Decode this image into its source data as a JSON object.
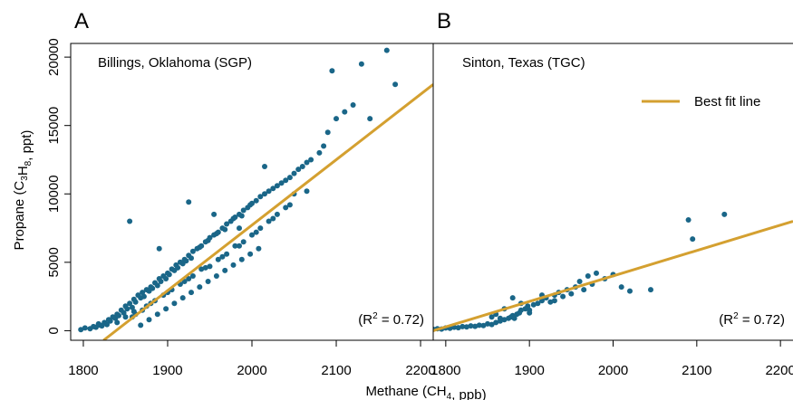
{
  "colors": {
    "points": "#1a6688",
    "fit_line": "#d4a030",
    "axis": "#000000"
  },
  "chart_data": [
    {
      "type": "scatter",
      "panel_letter": "A",
      "title": "Billings, Oklahoma (SGP)",
      "annotation_r2": "0.72",
      "xlabel": "Methane (CH₄, ppb)",
      "ylabel": "Propane (C₃H₈, ppt)",
      "xlim": [
        1785,
        2215
      ],
      "ylim": [
        -700,
        21000
      ],
      "xticks": [
        1800,
        1900,
        2000,
        2100,
        2200
      ],
      "yticks": [
        0,
        5000,
        10000,
        15000,
        20000
      ],
      "series": [
        {
          "x": [
            1797,
            1802,
            1808,
            1812,
            1815,
            1818,
            1820,
            1822,
            1825,
            1828,
            1830,
            1832,
            1835,
            1838,
            1840,
            1842,
            1845,
            1848,
            1850,
            1852,
            1855,
            1858,
            1860,
            1862,
            1865,
            1868,
            1870,
            1872,
            1875,
            1878,
            1880,
            1882,
            1885,
            1888,
            1890,
            1892,
            1895,
            1898,
            1900,
            1902,
            1905,
            1908,
            1910,
            1912,
            1915,
            1918,
            1920,
            1922,
            1925,
            1928,
            1930,
            1935,
            1938,
            1940,
            1945,
            1948,
            1950,
            1955,
            1958,
            1960,
            1965,
            1968,
            1970,
            1975,
            1978,
            1980,
            1985,
            1988,
            1990,
            1995,
            1998,
            2000,
            2005,
            2010,
            2015,
            2020,
            2025,
            2030,
            2035,
            2040,
            2045,
            2050,
            2055,
            2060,
            2065,
            2070,
            2080,
            2085,
            2090,
            2100,
            2110,
            2130,
            2140,
            2160,
            2170,
            1858,
            1862,
            1870,
            1875,
            1885,
            1895,
            1905,
            1915,
            1925,
            1930,
            1940,
            1950,
            1960,
            1970,
            1980,
            1990,
            2000,
            2010,
            2020,
            2030,
            2040,
            2050,
            1868,
            1878,
            1888,
            1898,
            1908,
            1918,
            1928,
            1938,
            1948,
            1958,
            1968,
            1978,
            1988,
            1998,
            2008,
            1840,
            1850,
            1860,
            1880,
            1900,
            1920,
            1945,
            1965,
            1985,
            2005,
            2025,
            2045,
            2065,
            1855,
            1890,
            1925,
            1955,
            1985,
            2015,
            2095,
            2120
          ],
          "y": [
            80,
            200,
            150,
            300,
            250,
            500,
            400,
            350,
            600,
            450,
            800,
            700,
            1000,
            900,
            1200,
            1100,
            1500,
            1300,
            1800,
            1600,
            2000,
            1700,
            2300,
            2100,
            2600,
            2400,
            2800,
            2500,
            3000,
            2900,
            3200,
            3100,
            3500,
            3300,
            3800,
            3600,
            4000,
            3800,
            4200,
            4100,
            4500,
            4400,
            4800,
            4600,
            5000,
            4900,
            5200,
            5100,
            5500,
            5300,
            5800,
            6000,
            6100,
            6200,
            6500,
            6600,
            6800,
            7000,
            7100,
            7200,
            7500,
            7400,
            7800,
            8000,
            8200,
            8300,
            8500,
            8400,
            8800,
            9000,
            9200,
            9300,
            9500,
            9800,
            10000,
            10200,
            10400,
            10600,
            10800,
            11000,
            11200,
            11500,
            11800,
            12000,
            12300,
            12500,
            13000,
            13500,
            14500,
            15500,
            16000,
            19500,
            15500,
            20500,
            18000,
            1000,
            1200,
            1500,
            1800,
            2200,
            2600,
            3000,
            3400,
            3800,
            4000,
            4500,
            4700,
            5200,
            5600,
            6200,
            6500,
            7000,
            7500,
            8000,
            8500,
            9000,
            10000,
            400,
            800,
            1200,
            1600,
            2000,
            2400,
            2800,
            3200,
            3600,
            4000,
            4400,
            4800,
            5200,
            5600,
            6000,
            600,
            1000,
            1400,
            2000,
            2800,
            3600,
            4600,
            5400,
            6200,
            7200,
            8200,
            9200,
            10200,
            8000,
            6000,
            9400,
            8500,
            7500,
            12000,
            19000,
            16500
          ]
        }
      ],
      "fit_line": {
        "name": "Best fit line",
        "x": [
          1824,
          2215
        ],
        "y": [
          -700,
          18000
        ]
      }
    },
    {
      "type": "scatter",
      "panel_letter": "B",
      "title": "Sinton, Texas (TGC)",
      "annotation_r2": "0.72",
      "xlabel": "Methane (CH₄, ppb)",
      "xlim": [
        1785,
        2215
      ],
      "ylim": [
        -700,
        21000
      ],
      "xticks": [
        1800,
        1900,
        2000,
        2100,
        2200
      ],
      "legend": {
        "entries": [
          "Best fit line"
        ],
        "placement": "top-right"
      },
      "series": [
        {
          "x": [
            1785,
            1790,
            1795,
            1800,
            1805,
            1810,
            1815,
            1820,
            1825,
            1830,
            1835,
            1840,
            1845,
            1850,
            1855,
            1860,
            1865,
            1870,
            1875,
            1878,
            1880,
            1882,
            1885,
            1888,
            1890,
            1895,
            1898,
            1900,
            1905,
            1910,
            1915,
            1920,
            1925,
            1930,
            1935,
            1940,
            1945,
            1950,
            1955,
            1960,
            1965,
            1970,
            1975,
            1980,
            1990,
            2000,
            2010,
            2020,
            2045,
            2090,
            2095,
            2133,
            1855,
            1860,
            1865,
            1870,
            1880,
            1890,
            1900,
            1915,
            1930
          ],
          "y": [
            100,
            150,
            120,
            200,
            180,
            250,
            220,
            300,
            280,
            350,
            320,
            400,
            380,
            500,
            450,
            600,
            700,
            800,
            900,
            1000,
            1100,
            900,
            1200,
            1300,
            1500,
            1600,
            1800,
            1300,
            1900,
            2000,
            2200,
            2400,
            2100,
            2600,
            2800,
            2500,
            3000,
            2700,
            3200,
            3600,
            3000,
            4000,
            3400,
            4200,
            3800,
            4100,
            3200,
            2900,
            3000,
            8100,
            6700,
            8500,
            1000,
            1200,
            900,
            1600,
            2400,
            2000,
            1500,
            2600,
            2200
          ]
        }
      ],
      "fit_line": {
        "name": "Best fit line",
        "x": [
          1785,
          2215
        ],
        "y": [
          0,
          8000
        ]
      }
    }
  ]
}
